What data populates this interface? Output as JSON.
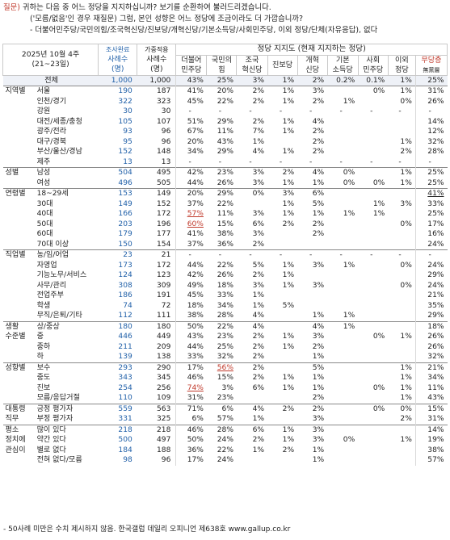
{
  "question": {
    "label": "질문)",
    "line1": "귀하는 다음 중 어느 정당을 지지하십니까? 보기를 순환하여 불러드리겠습니다.",
    "line2": "('모름/없음'인 경우 재질문) 그럼, 본인 성향은 어느 정당에 조금이라도 더 가깝습니까?",
    "line3": "- 더불어민주당/국민의힘/조국혁신당/진보당/개혁신당/기본소득당/사회민주당, 이외 정당/단체(자유응답), 없다"
  },
  "header": {
    "period_line1": "2025년 10월 4주",
    "period_line2": "(21~23일)",
    "col_sample1": "조사완료",
    "col_sample2": "사례수",
    "col_sample3": "(명)",
    "col_weight1": "가중적용",
    "col_weight2": "사례수",
    "col_weight3": "(명)",
    "party_group": "정당 지지도 (현재 지지하는 정당)",
    "parties": [
      {
        "l1": "더불어",
        "l2": "민주당"
      },
      {
        "l1": "국민의",
        "l2": "힘"
      },
      {
        "l1": "조국",
        "l2": "혁신당"
      },
      {
        "l1": "진보당",
        "l2": ""
      },
      {
        "l1": "개혁",
        "l2": "신당"
      },
      {
        "l1": "기본",
        "l2": "소득당"
      },
      {
        "l1": "사회",
        "l2": "민주당"
      },
      {
        "l1": "이외",
        "l2": "정당"
      },
      {
        "l1": "무당층",
        "l2": "無黨層"
      }
    ]
  },
  "rows": [
    {
      "g": "",
      "s": "전체",
      "n1": "1,000",
      "n2": "1,000",
      "v": [
        "43%",
        "25%",
        "3%",
        "1%",
        "2%",
        "0.2%",
        "0.1%",
        "1%",
        "25%"
      ],
      "total": true
    },
    {
      "g": "지역별",
      "s": "서울",
      "n1": "190",
      "n2": "187",
      "v": [
        "41%",
        "20%",
        "2%",
        "1%",
        "3%",
        "",
        "0%",
        "1%",
        "31%"
      ],
      "gs": true
    },
    {
      "g": "",
      "s": "인천/경기",
      "n1": "322",
      "n2": "323",
      "v": [
        "45%",
        "22%",
        "2%",
        "1%",
        "2%",
        "1%",
        "",
        "0%",
        "26%"
      ]
    },
    {
      "g": "",
      "s": "강원",
      "n1": "30",
      "n2": "30",
      "v": [
        "-",
        "-",
        "-",
        "-",
        "-",
        "-",
        "-",
        "-",
        "-"
      ]
    },
    {
      "g": "",
      "s": "대전/세종/충청",
      "n1": "105",
      "n2": "107",
      "v": [
        "51%",
        "29%",
        "2%",
        "1%",
        "4%",
        "",
        "",
        "",
        "14%"
      ]
    },
    {
      "g": "",
      "s": "광주/전라",
      "n1": "93",
      "n2": "96",
      "v": [
        "67%",
        "11%",
        "7%",
        "1%",
        "2%",
        "",
        "",
        "",
        "12%"
      ]
    },
    {
      "g": "",
      "s": "대구/경북",
      "n1": "95",
      "n2": "96",
      "v": [
        "20%",
        "43%",
        "1%",
        "",
        "2%",
        "",
        "",
        "1%",
        "32%"
      ]
    },
    {
      "g": "",
      "s": "부산/울산/경남",
      "n1": "152",
      "n2": "148",
      "v": [
        "34%",
        "29%",
        "4%",
        "1%",
        "2%",
        "",
        "",
        "2%",
        "28%"
      ]
    },
    {
      "g": "",
      "s": "제주",
      "n1": "13",
      "n2": "13",
      "v": [
        "-",
        "-",
        "-",
        "-",
        "-",
        "-",
        "-",
        "-",
        "-"
      ]
    },
    {
      "g": "성별",
      "s": "남성",
      "n1": "504",
      "n2": "495",
      "v": [
        "42%",
        "23%",
        "3%",
        "2%",
        "4%",
        "0%",
        "",
        "1%",
        "25%"
      ],
      "gs": true
    },
    {
      "g": "",
      "s": "여성",
      "n1": "496",
      "n2": "505",
      "v": [
        "44%",
        "26%",
        "3%",
        "1%",
        "1%",
        "0%",
        "0%",
        "1%",
        "25%"
      ]
    },
    {
      "g": "연령별",
      "s": "18~29세",
      "n1": "153",
      "n2": "149",
      "v": [
        "20%",
        "29%",
        "0%",
        "3%",
        "6%",
        "",
        "",
        "",
        "41%"
      ],
      "gs": true,
      "ul": [
        8
      ]
    },
    {
      "g": "",
      "s": "30대",
      "n1": "149",
      "n2": "152",
      "v": [
        "37%",
        "22%",
        "",
        "1%",
        "5%",
        "",
        "1%",
        "3%",
        "33%"
      ]
    },
    {
      "g": "",
      "s": "40대",
      "n1": "166",
      "n2": "172",
      "v": [
        "57%",
        "11%",
        "3%",
        "1%",
        "1%",
        "1%",
        "1%",
        "",
        "25%"
      ],
      "red": [
        0
      ]
    },
    {
      "g": "",
      "s": "50대",
      "n1": "203",
      "n2": "196",
      "v": [
        "60%",
        "15%",
        "6%",
        "2%",
        "2%",
        "",
        "",
        "0%",
        "17%"
      ],
      "red": [
        0
      ]
    },
    {
      "g": "",
      "s": "60대",
      "n1": "179",
      "n2": "177",
      "v": [
        "41%",
        "38%",
        "3%",
        "",
        "2%",
        "",
        "",
        "",
        "16%"
      ]
    },
    {
      "g": "",
      "s": "70대 이상",
      "n1": "150",
      "n2": "154",
      "v": [
        "37%",
        "36%",
        "2%",
        "",
        "",
        "",
        "",
        "",
        "24%"
      ]
    },
    {
      "g": "직업별",
      "s": "농/임/어업",
      "n1": "23",
      "n2": "21",
      "v": [
        "-",
        "-",
        "-",
        "-",
        "-",
        "-",
        "-",
        "-",
        "-"
      ],
      "gs": true
    },
    {
      "g": "",
      "s": "자영업",
      "n1": "173",
      "n2": "172",
      "v": [
        "44%",
        "22%",
        "5%",
        "1%",
        "3%",
        "1%",
        "",
        "0%",
        "24%"
      ]
    },
    {
      "g": "",
      "s": "기능노무/서비스",
      "n1": "124",
      "n2": "123",
      "v": [
        "42%",
        "26%",
        "2%",
        "1%",
        "",
        "",
        "",
        "",
        "29%"
      ]
    },
    {
      "g": "",
      "s": "사무/관리",
      "n1": "308",
      "n2": "309",
      "v": [
        "49%",
        "18%",
        "3%",
        "1%",
        "3%",
        "",
        "",
        "0%",
        "24%"
      ]
    },
    {
      "g": "",
      "s": "전업주부",
      "n1": "186",
      "n2": "191",
      "v": [
        "45%",
        "33%",
        "1%",
        "",
        "",
        "",
        "",
        "",
        "21%"
      ]
    },
    {
      "g": "",
      "s": "학생",
      "n1": "74",
      "n2": "72",
      "v": [
        "18%",
        "34%",
        "1%",
        "5%",
        "",
        "",
        "",
        "",
        "35%"
      ]
    },
    {
      "g": "",
      "s": "무직/은퇴/기타",
      "n1": "112",
      "n2": "111",
      "v": [
        "38%",
        "28%",
        "4%",
        "",
        "1%",
        "1%",
        "",
        "",
        "29%"
      ]
    },
    {
      "g": "생활",
      "s": "상/중상",
      "n1": "180",
      "n2": "180",
      "v": [
        "50%",
        "22%",
        "4%",
        "",
        "4%",
        "1%",
        "",
        "",
        "18%"
      ],
      "gs": true
    },
    {
      "g": "수준별",
      "s": "중",
      "n1": "446",
      "n2": "449",
      "v": [
        "43%",
        "23%",
        "2%",
        "1%",
        "3%",
        "",
        "0%",
        "1%",
        "26%"
      ]
    },
    {
      "g": "",
      "s": "중하",
      "n1": "211",
      "n2": "209",
      "v": [
        "44%",
        "25%",
        "2%",
        "1%",
        "2%",
        "",
        "",
        "",
        "26%"
      ]
    },
    {
      "g": "",
      "s": "하",
      "n1": "139",
      "n2": "138",
      "v": [
        "33%",
        "32%",
        "2%",
        "",
        "1%",
        "",
        "",
        "",
        "32%"
      ]
    },
    {
      "g": "성향별",
      "s": "보수",
      "n1": "293",
      "n2": "290",
      "v": [
        "17%",
        "56%",
        "2%",
        "",
        "5%",
        "",
        "",
        "1%",
        "21%"
      ],
      "gs": true,
      "red": [
        1
      ]
    },
    {
      "g": "",
      "s": "중도",
      "n1": "343",
      "n2": "345",
      "v": [
        "46%",
        "15%",
        "2%",
        "1%",
        "1%",
        "",
        "",
        "1%",
        "34%"
      ]
    },
    {
      "g": "",
      "s": "진보",
      "n1": "254",
      "n2": "256",
      "v": [
        "74%",
        "3%",
        "6%",
        "1%",
        "1%",
        "",
        "0%",
        "1%",
        "11%"
      ],
      "red": [
        0
      ]
    },
    {
      "g": "",
      "s": "모름/응답거절",
      "n1": "110",
      "n2": "109",
      "v": [
        "31%",
        "23%",
        "",
        "",
        "2%",
        "",
        "",
        "1%",
        "43%"
      ]
    },
    {
      "g": "대통령",
      "s": "긍정 평가자",
      "n1": "559",
      "n2": "563",
      "v": [
        "71%",
        "6%",
        "4%",
        "2%",
        "2%",
        "",
        "0%",
        "0%",
        "15%"
      ],
      "gs": true
    },
    {
      "g": "직무",
      "s": "부정 평가자",
      "n1": "331",
      "n2": "325",
      "v": [
        "6%",
        "57%",
        "1%",
        "",
        "3%",
        "",
        "",
        "2%",
        "31%"
      ]
    },
    {
      "g": "평소",
      "s": "많이 있다",
      "n1": "218",
      "n2": "218",
      "v": [
        "46%",
        "28%",
        "6%",
        "1%",
        "3%",
        "",
        "",
        "",
        "14%"
      ],
      "gs": true
    },
    {
      "g": "정치에",
      "s": "약간 있다",
      "n1": "500",
      "n2": "497",
      "v": [
        "50%",
        "24%",
        "2%",
        "1%",
        "3%",
        "0%",
        "",
        "1%",
        "19%"
      ]
    },
    {
      "g": "관심이",
      "s": "별로 없다",
      "n1": "184",
      "n2": "188",
      "v": [
        "36%",
        "22%",
        "1%",
        "2%",
        "1%",
        "",
        "",
        "",
        "38%"
      ]
    },
    {
      "g": "",
      "s": "전혀 없다/모름",
      "n1": "98",
      "n2": "96",
      "v": [
        "17%",
        "24%",
        "",
        "",
        "1%",
        "",
        "",
        "",
        "57%"
      ]
    }
  ],
  "footnote": "- 50사례 미만은 수치 제시하지 않음. 한국갤럽 데일리 오피니언 제638호 www.gallup.co.kr"
}
